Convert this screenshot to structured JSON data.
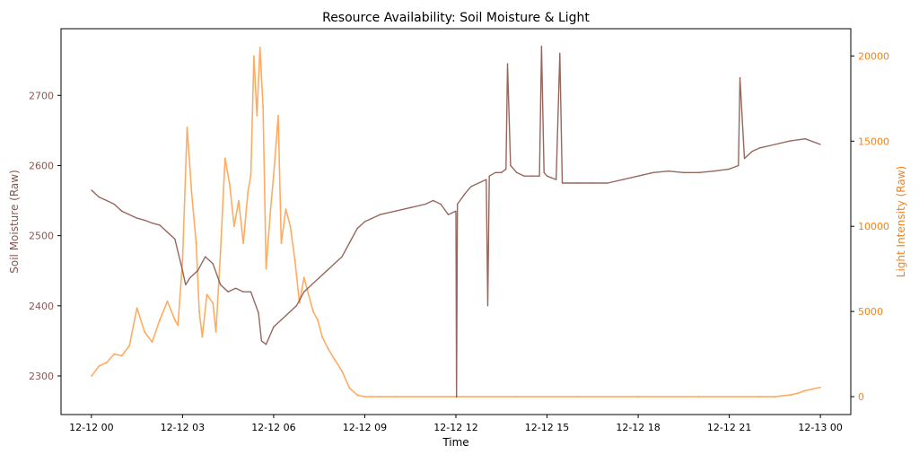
{
  "chart_data": {
    "type": "line",
    "title": "Resource Availability: Soil Moisture & Light",
    "xlabel": "Time",
    "x_ticks": [
      "12-12 00",
      "12-12 03",
      "12-12 06",
      "12-12 09",
      "12-12 12",
      "12-12 15",
      "12-12 18",
      "12-12 21",
      "12-13 00"
    ],
    "x_range_hours": [
      -1.0,
      25.0
    ],
    "y_left": {
      "label": "Soil Moisture (Raw)",
      "range": [
        2245,
        2795
      ],
      "ticks": [
        2300,
        2400,
        2500,
        2600,
        2700
      ],
      "color": "#8c564b"
    },
    "y_right": {
      "label": "Light Intensity (Raw)",
      "range": [
        -1050,
        21600
      ],
      "ticks": [
        0,
        5000,
        10000,
        15000,
        20000
      ],
      "color": "#ff7f0e"
    },
    "series": [
      {
        "axis": "left",
        "color": "#8c564b",
        "x": [
          0,
          0.25,
          0.5,
          0.75,
          1,
          1.25,
          1.5,
          1.75,
          2,
          2.25,
          2.5,
          2.75,
          3,
          3.1,
          3.25,
          3.5,
          3.75,
          4,
          4.25,
          4.5,
          4.75,
          5,
          5.25,
          5.5,
          5.6,
          5.75,
          6,
          6.25,
          6.5,
          6.75,
          7,
          7.25,
          7.5,
          7.75,
          8,
          8.25,
          8.5,
          8.75,
          9,
          9.5,
          10,
          10.5,
          11,
          11.25,
          11.5,
          11.75,
          12,
          12.02,
          12.05,
          12.3,
          12.5,
          12.75,
          13,
          13.05,
          13.1,
          13.3,
          13.5,
          13.65,
          13.7,
          13.8,
          14,
          14.25,
          14.5,
          14.75,
          14.82,
          14.9,
          15,
          15.3,
          15.42,
          15.5,
          15.75,
          16,
          16.5,
          17,
          17.5,
          18,
          18.5,
          19,
          19.5,
          20,
          20.5,
          21,
          21.3,
          21.35,
          21.5,
          21.75,
          22,
          22.5,
          23,
          23.5,
          24
        ],
        "y": [
          2565,
          2555,
          2550,
          2545,
          2535,
          2530,
          2525,
          2522,
          2518,
          2515,
          2505,
          2495,
          2450,
          2430,
          2440,
          2450,
          2470,
          2460,
          2430,
          2420,
          2425,
          2420,
          2420,
          2390,
          2350,
          2345,
          2370,
          2380,
          2390,
          2400,
          2420,
          2430,
          2440,
          2450,
          2460,
          2470,
          2490,
          2510,
          2520,
          2530,
          2535,
          2540,
          2545,
          2550,
          2545,
          2530,
          2535,
          2270,
          2545,
          2560,
          2570,
          2575,
          2580,
          2400,
          2585,
          2590,
          2590,
          2595,
          2745,
          2600,
          2590,
          2585,
          2585,
          2585,
          2770,
          2590,
          2585,
          2580,
          2760,
          2575,
          2575,
          2575,
          2575,
          2575,
          2580,
          2585,
          2590,
          2592,
          2590,
          2590,
          2592,
          2595,
          2600,
          2725,
          2610,
          2620,
          2625,
          2630,
          2635,
          2638,
          2630
        ]
      },
      {
        "axis": "right",
        "color": "#ff7f0e",
        "x": [
          0,
          0.25,
          0.5,
          0.75,
          1,
          1.25,
          1.5,
          1.75,
          2,
          2.25,
          2.5,
          2.75,
          2.85,
          3,
          3.15,
          3.3,
          3.45,
          3.55,
          3.65,
          3.8,
          4,
          4.1,
          4.25,
          4.4,
          4.55,
          4.7,
          4.85,
          5,
          5.15,
          5.25,
          5.35,
          5.45,
          5.55,
          5.65,
          5.75,
          5.9,
          6,
          6.15,
          6.25,
          6.4,
          6.55,
          6.7,
          6.85,
          7,
          7.15,
          7.3,
          7.45,
          7.6,
          7.8,
          8,
          8.25,
          8.5,
          8.75,
          9,
          9.5,
          10,
          12,
          14,
          16,
          18,
          20,
          22,
          22.5,
          23,
          23.25,
          23.5,
          23.75,
          24
        ],
        "y": [
          1200,
          1800,
          2000,
          2500,
          2400,
          3000,
          5200,
          3800,
          3200,
          4500,
          5600,
          4500,
          4200,
          8000,
          15800,
          12000,
          9000,
          5000,
          3500,
          6000,
          5500,
          3800,
          8500,
          14000,
          12500,
          10000,
          11500,
          9000,
          12000,
          13000,
          20000,
          16500,
          20500,
          17000,
          7500,
          11000,
          13000,
          16500,
          9000,
          11000,
          10000,
          8000,
          5500,
          7000,
          6000,
          5000,
          4500,
          3500,
          2800,
          2200,
          1500,
          500,
          100,
          0,
          0,
          0,
          0,
          0,
          0,
          0,
          0,
          0,
          0,
          100,
          200,
          350,
          450,
          550
        ]
      }
    ]
  }
}
